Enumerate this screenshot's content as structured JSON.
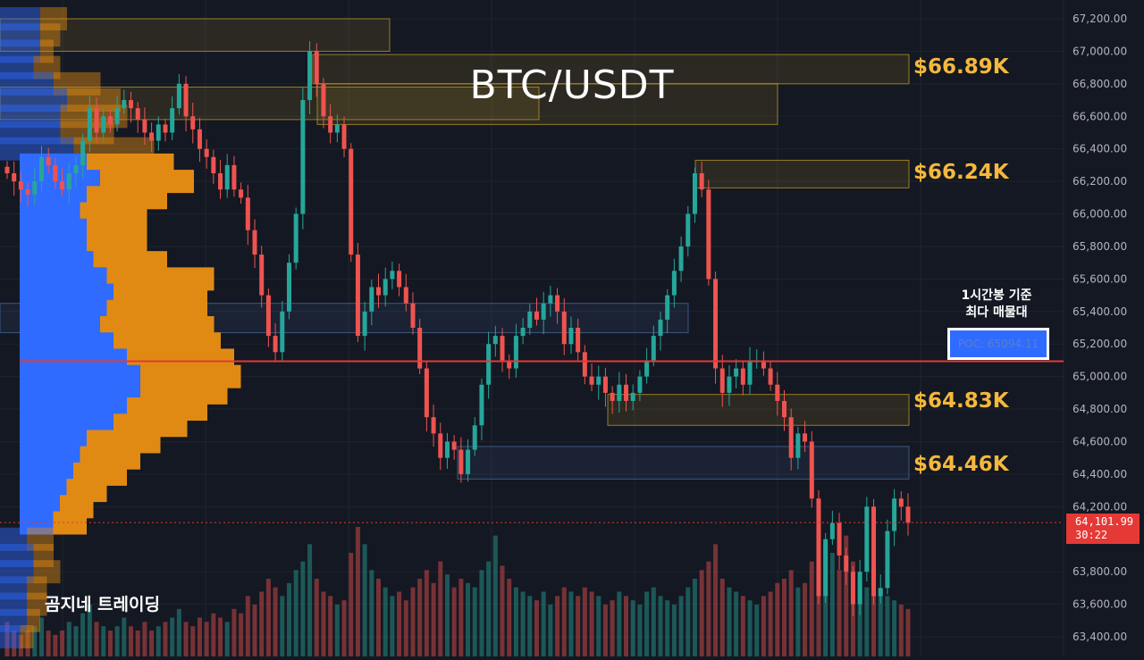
{
  "title": "BTC/USDT",
  "brand": "곰지네 트레이딩",
  "poc_note_line1": "1시간봉 기준",
  "poc_note_line2": "최다 매물대",
  "poc_label": "POC: 65094.11",
  "current_price": {
    "value": "64,101.99",
    "countdown": "30:22",
    "price": 64101.99
  },
  "levels": [
    {
      "label": "$66.89K",
      "price": 66890
    },
    {
      "label": "$66.24K",
      "price": 66240
    },
    {
      "label": "$64.83K",
      "price": 64830
    },
    {
      "label": "$64.46K",
      "price": 64460
    }
  ],
  "colors": {
    "background": "#141822",
    "up": "#26a69a",
    "down": "#ef5350",
    "level_text": "#f5b83c",
    "volume_profile_buy": "#2f6bff",
    "volume_profile_sell": "#e08a14",
    "poc_line": "#e53935"
  },
  "chart_data": {
    "type": "candlestick",
    "title": "BTC/USDT",
    "y_axis": {
      "ylim": [
        63300,
        67300
      ],
      "ticks": [
        "67,200.00",
        "67,000.00",
        "66,800.00",
        "66,600.00",
        "66,400.00",
        "66,200.00",
        "66,000.00",
        "65,800.00",
        "65,600.00",
        "65,400.00",
        "65,200.00",
        "65,000.00",
        "64,800.00",
        "64,600.00",
        "64,400.00",
        "64,200.00",
        "63,800.00",
        "63,600.00",
        "63,400.00"
      ],
      "tick_values": [
        67200,
        67000,
        66800,
        66600,
        66400,
        66200,
        66000,
        65800,
        65600,
        65400,
        65200,
        65000,
        64800,
        64600,
        64400,
        64200,
        63800,
        63600,
        63400
      ]
    },
    "poc": 65094.11,
    "closes": [
      66250,
      66200,
      66150,
      66120,
      66200,
      66350,
      66300,
      66200,
      66150,
      66250,
      66300,
      66450,
      66650,
      66500,
      66600,
      66550,
      66650,
      66700,
      66650,
      66580,
      66500,
      66450,
      66550,
      66500,
      66650,
      66800,
      66600,
      66520,
      66400,
      66350,
      66250,
      66150,
      66300,
      66150,
      66100,
      65900,
      65750,
      65500,
      65250,
      65150,
      65400,
      65700,
      66000,
      66700,
      67000,
      66800,
      66600,
      66500,
      66550,
      66400,
      65750,
      65250,
      65400,
      65550,
      65500,
      65600,
      65650,
      65550,
      65450,
      65300,
      65050,
      64750,
      64650,
      64500,
      64600,
      64550,
      64400,
      64550,
      64700,
      64950,
      65200,
      65250,
      65100,
      65050,
      65250,
      65300,
      65400,
      65350,
      65450,
      65500,
      65400,
      65200,
      65300,
      65150,
      65000,
      64950,
      65000,
      64900,
      64850,
      64950,
      64850,
      64900,
      65000,
      65100,
      65250,
      65350,
      65500,
      65650,
      65800,
      66000,
      66250,
      66150,
      65600,
      65050,
      64900,
      65000,
      65050,
      64950,
      65100,
      65100,
      65050,
      64950,
      64850,
      64750,
      64500,
      64650,
      64600,
      64250,
      63650,
      64000,
      64100,
      63900,
      63800,
      63600,
      63800,
      64200,
      63650,
      63700,
      64050,
      64250,
      64200,
      64100
    ],
    "volumes": [
      8,
      6,
      5,
      6,
      7,
      9,
      6,
      5,
      6,
      8,
      7,
      10,
      12,
      8,
      7,
      6,
      7,
      9,
      7,
      6,
      8,
      6,
      7,
      8,
      9,
      11,
      8,
      7,
      9,
      8,
      10,
      9,
      8,
      11,
      10,
      14,
      12,
      15,
      18,
      16,
      14,
      17,
      20,
      22,
      26,
      18,
      15,
      14,
      12,
      13,
      24,
      30,
      26,
      20,
      18,
      16,
      14,
      15,
      13,
      16,
      18,
      20,
      17,
      22,
      19,
      16,
      18,
      17,
      16,
      20,
      22,
      28,
      21,
      18,
      16,
      15,
      14,
      13,
      15,
      12,
      14,
      16,
      15,
      14,
      16,
      15,
      14,
      12,
      13,
      15,
      14,
      13,
      12,
      15,
      16,
      14,
      13,
      12,
      14,
      16,
      18,
      20,
      22,
      26,
      18,
      16,
      15,
      14,
      13,
      12,
      14,
      15,
      17,
      18,
      20,
      16,
      17,
      22,
      30,
      26,
      24,
      20,
      28,
      22,
      18,
      16,
      20,
      15,
      14,
      13,
      12,
      11
    ],
    "volume_profile": {
      "price_levels": [
        67200,
        67100,
        67000,
        66900,
        66800,
        66700,
        66600,
        66500,
        66400,
        66300,
        66200,
        66100,
        66000,
        65900,
        65800,
        65700,
        65600,
        65500,
        65400,
        65300,
        65200,
        65100,
        65000,
        64900,
        64800,
        64700,
        64600,
        64500,
        64400,
        64300,
        64200,
        64100,
        64000,
        63900,
        63800,
        63700,
        63600,
        63500,
        63400
      ],
      "buy": [
        6,
        6,
        6,
        5,
        8,
        10,
        9,
        9,
        11,
        10,
        12,
        10,
        9,
        10,
        10,
        11,
        13,
        14,
        13,
        12,
        14,
        16,
        18,
        18,
        16,
        14,
        10,
        9,
        8,
        7,
        6,
        5,
        4,
        5,
        5,
        4,
        4,
        4,
        3
      ],
      "sell": [
        4,
        3,
        2,
        4,
        7,
        8,
        10,
        8,
        12,
        13,
        14,
        12,
        10,
        9,
        9,
        11,
        16,
        14,
        15,
        17,
        16,
        16,
        15,
        13,
        12,
        11,
        11,
        9,
        8,
        6,
        5,
        5,
        4,
        3,
        4,
        3,
        3,
        2,
        2
      ],
      "buy_total_max": 20,
      "sell_total_max": 20
    },
    "zones": [
      {
        "low": 67000,
        "high": 67200
      },
      {
        "low": 66800,
        "high": 66980
      },
      {
        "low": 66580,
        "high": 66780
      },
      {
        "low": 66550,
        "high": 66800
      },
      {
        "low": 66160,
        "high": 66330
      },
      {
        "low": 65270,
        "high": 65450
      },
      {
        "low": 64700,
        "high": 64890
      },
      {
        "low": 64370,
        "high": 64570
      }
    ]
  }
}
